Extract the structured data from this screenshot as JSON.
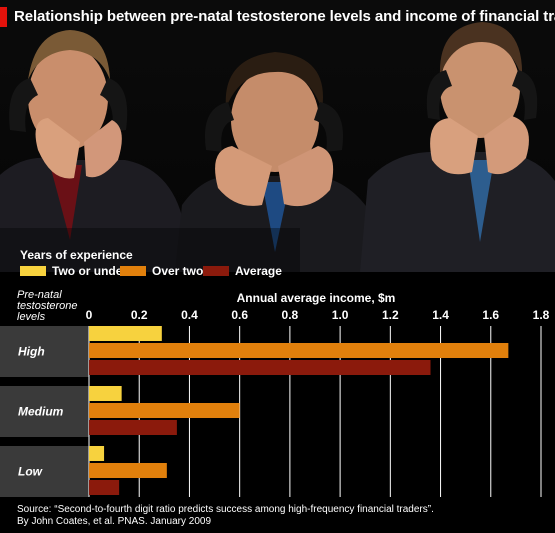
{
  "title": "Relationship between pre-natal testosterone levels and income of financial traders",
  "legend": {
    "title": "Years of experience",
    "items": [
      {
        "label": "Two or under",
        "color": "#f7d23e"
      },
      {
        "label": "Over two",
        "color": "#e1800c"
      },
      {
        "label": "Average",
        "color": "#8b1a0c"
      }
    ]
  },
  "source": {
    "line1": "Source: “Second-to-fourth digit ratio predicts success among high-frequency financial traders”.",
    "line2": "By John Coates, et al. PNAS. January 2009"
  },
  "chart_data": {
    "type": "bar",
    "orientation": "horizontal",
    "title": "Relationship between pre-natal testosterone levels and income of financial traders",
    "xlabel": "Annual average income, $m",
    "ylabel": "Pre-natal testosterone levels",
    "categories": [
      "High",
      "Medium",
      "Low"
    ],
    "xlim": [
      0,
      1.8
    ],
    "ticks": [
      "0",
      "0.2",
      "0.4",
      "0.6",
      "0.8",
      "1.0",
      "1.2",
      "1.4",
      "1.6",
      "1.8"
    ],
    "tick_values": [
      0,
      0.2,
      0.4,
      0.6,
      0.8,
      1.0,
      1.2,
      1.4,
      1.6,
      1.8
    ],
    "grid": true,
    "legend_position": "top-left",
    "series": [
      {
        "name": "Two or under",
        "color": "#f7d23e",
        "values": [
          0.29,
          0.13,
          0.06
        ]
      },
      {
        "name": "Over two",
        "color": "#e1800c",
        "values": [
          1.67,
          0.6,
          0.31
        ]
      },
      {
        "name": "Average",
        "color": "#8b1a0c",
        "values": [
          1.36,
          0.35,
          0.12
        ]
      }
    ]
  }
}
